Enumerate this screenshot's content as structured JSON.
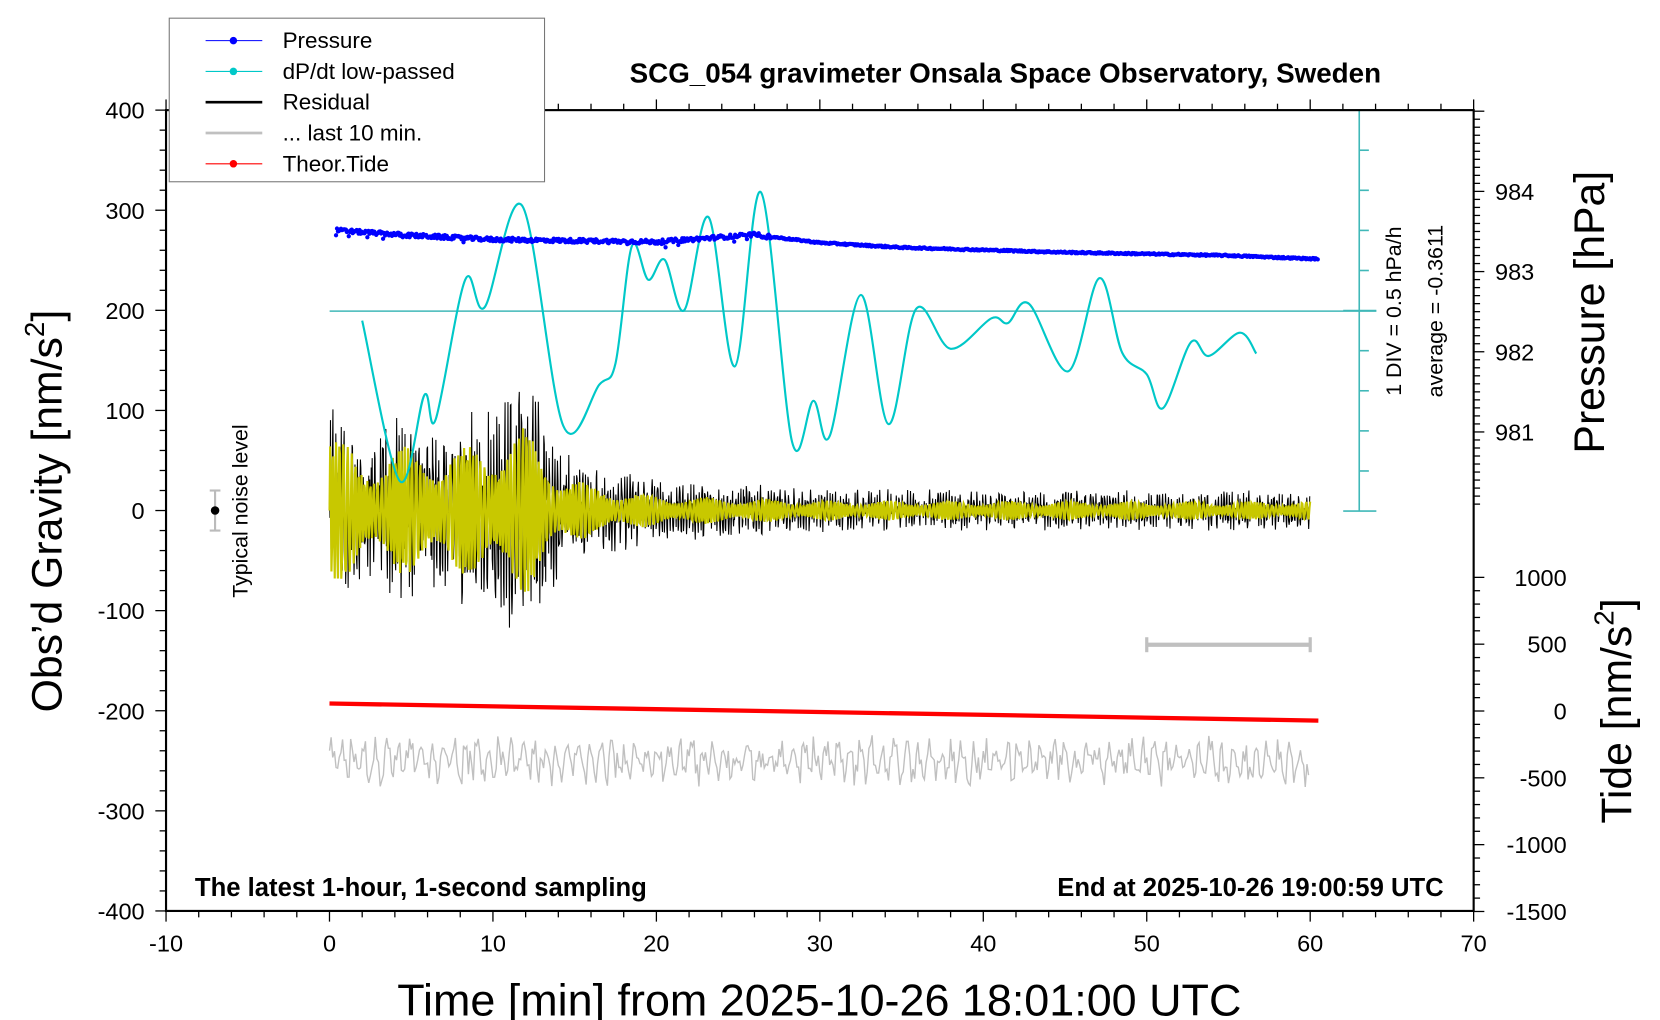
{
  "chart_data": {
    "type": "line",
    "title": "SCG_054 gravimeter Onsala Space Observatory, Sweden",
    "xlabel": "Time [min] from 2025-10-26 18:01:00 UTC",
    "ylabel_left": "Obs’d Gravity [nm/s",
    "ylabel_left_sup": "2",
    "ylabel_left_close": "]",
    "ylabel_right_pressure": "Pressure [hPa]",
    "ylabel_right_tide": "Tide [nm/s",
    "ylabel_right_tide_sup": "2",
    "ylabel_right_tide_close": "]",
    "xlim": [
      -10,
      70
    ],
    "ylim_gravity": [
      -400,
      400
    ],
    "x_ticks": [
      "-10",
      "0",
      "10",
      "20",
      "30",
      "40",
      "50",
      "60",
      "70"
    ],
    "y_ticks_gravity": [
      "400",
      "300",
      "200",
      "100",
      "0",
      "-100",
      "-200",
      "-300",
      "-400"
    ],
    "y_ticks_pressure": [
      "984",
      "983",
      "982",
      "981"
    ],
    "y_ticks_tide": [
      "1000",
      "500",
      "0",
      "-500",
      "-1000",
      "-1500"
    ],
    "legend_placement": "top-left",
    "legend": [
      {
        "label": "Pressure",
        "color": "#0000ff",
        "marker": true
      },
      {
        "label": "dP/dt low-passed",
        "color": "#00c8c8",
        "marker": true
      },
      {
        "label": "Residual",
        "color": "#000000",
        "marker": false
      },
      {
        "label": "... last 10 min.",
        "color": "#c0c0c0",
        "marker": false
      },
      {
        "label": "Theor.Tide",
        "color": "#ff0000",
        "marker": true
      }
    ],
    "annotations": {
      "left_bottom": "The latest 1-hour, 1-second sampling",
      "right_bottom": "End at 2025-10-26 19:00:59 UTC",
      "noise_label": "Typical noise level",
      "div_scale": "1 DIV = 0.5 hPa/h",
      "average": "average = -0.3611"
    },
    "noise_level": {
      "x": -7,
      "y": 0,
      "error": 20
    },
    "last_10_min_bar": [
      50,
      60
    ],
    "dpdt_average": -0.3611,
    "dpdt_div_hPa_per_h": 0.5,
    "series": {
      "pressure_hPa": [
        [
          0,
          983.52
        ],
        [
          5,
          983.45
        ],
        [
          10,
          983.4
        ],
        [
          20,
          983.37
        ],
        [
          26,
          983.46
        ],
        [
          30,
          983.36
        ],
        [
          35,
          983.3
        ],
        [
          40,
          983.27
        ],
        [
          45,
          983.24
        ],
        [
          50,
          983.22
        ],
        [
          55,
          983.2
        ],
        [
          60,
          983.16
        ]
      ],
      "dpdt_hPa_per_h": [
        [
          2,
          -0.48
        ],
        [
          4.3,
          -2.48
        ],
        [
          5.8,
          -1.41
        ],
        [
          6.5,
          -1.71
        ],
        [
          8.3,
          0.03
        ],
        [
          9.5,
          -0.31
        ],
        [
          11.8,
          0.95
        ],
        [
          14.3,
          -1.79
        ],
        [
          16.5,
          -1.28
        ],
        [
          17.5,
          -1.01
        ],
        [
          18.5,
          0.45
        ],
        [
          19.5,
          0.03
        ],
        [
          20.5,
          0.28
        ],
        [
          21.7,
          -0.35
        ],
        [
          23.2,
          0.81
        ],
        [
          24.8,
          -1.05
        ],
        [
          26.4,
          1.12
        ],
        [
          28.3,
          -1.99
        ],
        [
          29.6,
          -1.48
        ],
        [
          30.6,
          -1.92
        ],
        [
          32.5,
          -0.16
        ],
        [
          34.2,
          -1.77
        ],
        [
          35.9,
          -0.33
        ],
        [
          38,
          -0.83
        ],
        [
          40.5,
          -0.45
        ],
        [
          41.5,
          -0.51
        ],
        [
          42.8,
          -0.27
        ],
        [
          45.2,
          -1.11
        ],
        [
          47.1,
          0.05
        ],
        [
          48.5,
          -0.88
        ],
        [
          50,
          -1.15
        ],
        [
          51,
          -1.57
        ],
        [
          52.7,
          -0.75
        ],
        [
          53.8,
          -0.92
        ],
        [
          55.7,
          -0.63
        ],
        [
          56.7,
          -0.89
        ]
      ],
      "residual_envelope_nm_s2": [
        [
          0,
          100
        ],
        [
          1,
          90
        ],
        [
          2,
          60
        ],
        [
          4,
          90
        ],
        [
          7,
          80
        ],
        [
          10,
          100
        ],
        [
          12,
          130
        ],
        [
          14,
          60
        ],
        [
          16,
          45
        ],
        [
          20,
          30
        ],
        [
          30,
          20
        ],
        [
          60,
          18
        ]
      ],
      "residual_lowpass_envelope_nm_s2": [
        [
          0,
          85
        ],
        [
          2,
          50
        ],
        [
          4,
          65
        ],
        [
          7,
          60
        ],
        [
          10,
          70
        ],
        [
          12,
          85
        ],
        [
          14,
          40
        ],
        [
          16,
          25
        ],
        [
          20,
          15
        ],
        [
          30,
          10
        ],
        [
          60,
          9
        ]
      ],
      "last_10_min_center_nm_s2": -250,
      "last_10_min_amplitude_nm_s2": 25,
      "theor_tide_nm_s2": [
        [
          0,
          56
        ],
        [
          60,
          -72
        ]
      ]
    },
    "colors": {
      "pressure": "#0000ff",
      "dpdt": "#00c8c8",
      "scale": "#40b8b8",
      "residual": "#000000",
      "lowpass": "#c8c800",
      "last10": "#c0c0c0",
      "tide": "#ff0000"
    }
  }
}
